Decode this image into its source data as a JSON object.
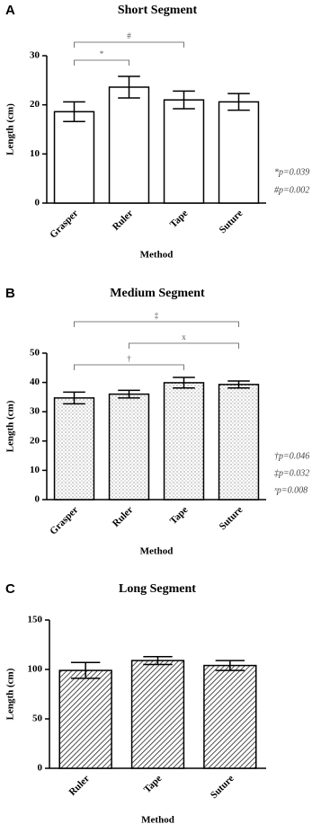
{
  "chart_data": [
    {
      "type": "bar",
      "panel": "A",
      "title": "Short Segment",
      "x_label": "Method",
      "y_label": "Length (cm)",
      "categories": [
        "Grasper",
        "Ruler",
        "Tape",
        "Suture"
      ],
      "values": [
        18.6,
        23.6,
        21.0,
        20.6
      ],
      "errors": [
        2.0,
        2.2,
        1.8,
        1.7
      ],
      "pattern": "none",
      "color": "#ffffff",
      "ylim": [
        0,
        30
      ],
      "yticks": [
        0,
        10,
        20,
        30
      ],
      "brackets": [
        {
          "label": "*",
          "between": [
            "Grasper",
            "Ruler"
          ]
        },
        {
          "label": "#",
          "between": [
            "Grasper",
            "Tape"
          ]
        }
      ],
      "notes": [
        "*p=0.039",
        "#p=0.002"
      ]
    },
    {
      "type": "bar",
      "panel": "B",
      "title": "Medium Segment",
      "x_label": "Method",
      "y_label": "Length (cm)",
      "categories": [
        "Grasper",
        "Ruler",
        "Tape",
        "Suture"
      ],
      "values": [
        34.7,
        36.0,
        39.9,
        39.3
      ],
      "errors": [
        2.0,
        1.3,
        1.8,
        1.2
      ],
      "pattern": "dots",
      "color": "#ffffff",
      "ylim": [
        0,
        50
      ],
      "yticks": [
        0,
        10,
        20,
        30,
        40,
        50
      ],
      "brackets": [
        {
          "label": "†",
          "between": [
            "Grasper",
            "Tape"
          ]
        },
        {
          "label": "x",
          "between": [
            "Ruler",
            "Suture"
          ]
        },
        {
          "label": "‡",
          "between": [
            "Grasper",
            "Suture"
          ]
        }
      ],
      "notes": [
        "†p=0.046",
        "‡p=0.032",
        "ˣp=0.008"
      ]
    },
    {
      "type": "bar",
      "panel": "C",
      "title": "Long Segment",
      "x_label": "Method",
      "y_label": "Length (cm)",
      "categories": [
        "Ruler",
        "Tape",
        "Suture"
      ],
      "values": [
        99,
        109,
        104
      ],
      "errors": [
        8,
        4,
        5
      ],
      "pattern": "hatch",
      "color": "#ffffff",
      "ylim": [
        0,
        150
      ],
      "yticks": [
        0,
        50,
        100,
        150
      ],
      "brackets": [],
      "notes": []
    }
  ]
}
